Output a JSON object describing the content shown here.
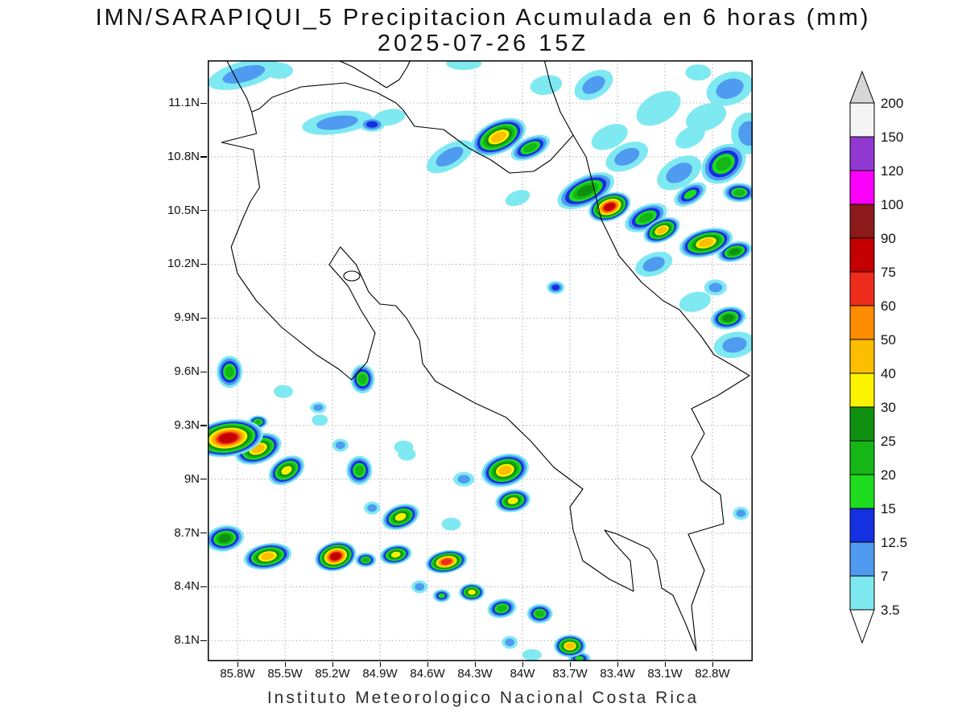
{
  "chart_data": {
    "type": "heatmap",
    "title": "IMN/SARAPIQUI_5 Precipitacion Acumulada en 6 horas (mm)",
    "subtitle": "2025-07-26 15Z",
    "footer": "Instituto Meteorologico Nacional Costa Rica",
    "units": "mm",
    "x_axis": {
      "ticks": [
        "85.8W",
        "85.5W",
        "85.2W",
        "84.9W",
        "84.6W",
        "84.3W",
        "84W",
        "83.7W",
        "83.4W",
        "83.1W",
        "82.8W"
      ]
    },
    "y_axis": {
      "ticks": [
        "11.1N",
        "10.8N",
        "10.5N",
        "10.2N",
        "9.9N",
        "9.6N",
        "9.3N",
        "9N",
        "8.7N",
        "8.4N",
        "8.1N"
      ]
    },
    "grid_color": "#8a8a8a",
    "colorbar": {
      "levels": [
        3.5,
        7,
        12.5,
        15,
        20,
        25,
        30,
        40,
        50,
        60,
        75,
        90,
        100,
        120,
        150,
        200
      ],
      "band_colors": [
        "#7FE9F2",
        "#4E9BEF",
        "#1430E0",
        "#1EDC1E",
        "#16B616",
        "#0F8F0F",
        "#FBF200",
        "#FDBE00",
        "#FB8C00",
        "#EE2C1C",
        "#C40000",
        "#8C1A1A",
        "#FA00FA",
        "#9038D0",
        "#F5F5F5"
      ],
      "above_color": "#D6D6D6",
      "below_color": "#FFFFFF"
    },
    "cells_format": [
      "lon_deg_west",
      "lat_deg_north",
      "rx_px",
      "ry_px",
      "rotation_deg",
      "peak_band_mm"
    ],
    "cells": [
      [
        85.76,
        11.26,
        46,
        16,
        -15,
        7
      ],
      [
        85.54,
        11.28,
        18,
        10,
        0,
        3.5
      ],
      [
        85.17,
        10.99,
        44,
        14,
        -8,
        7
      ],
      [
        84.84,
        11.02,
        20,
        10,
        -10,
        3.5
      ],
      [
        84.95,
        10.98,
        16,
        9,
        0,
        12.5
      ],
      [
        84.46,
        10.8,
        32,
        15,
        -30,
        7
      ],
      [
        84.15,
        10.91,
        36,
        20,
        -25,
        40
      ],
      [
        83.95,
        10.85,
        26,
        13,
        -25,
        20
      ],
      [
        83.85,
        11.2,
        20,
        12,
        -10,
        3.5
      ],
      [
        84.37,
        11.32,
        22,
        8,
        0,
        3.5
      ],
      [
        83.55,
        11.2,
        26,
        16,
        -30,
        7
      ],
      [
        82.69,
        11.18,
        30,
        20,
        -20,
        7
      ],
      [
        82.89,
        11.27,
        16,
        10,
        0,
        3.5
      ],
      [
        82.57,
        10.93,
        22,
        26,
        0,
        7
      ],
      [
        82.73,
        10.76,
        30,
        22,
        -35,
        20
      ],
      [
        82.94,
        10.91,
        20,
        12,
        -30,
        3.5
      ],
      [
        83.6,
        10.61,
        38,
        18,
        -25,
        25
      ],
      [
        83.45,
        10.52,
        27,
        17,
        -20,
        75
      ],
      [
        83.22,
        10.46,
        28,
        15,
        -25,
        20
      ],
      [
        83.12,
        10.39,
        24,
        14,
        -25,
        40
      ],
      [
        82.84,
        10.32,
        34,
        17,
        -15,
        40
      ],
      [
        82.66,
        10.27,
        22,
        12,
        -15,
        25
      ],
      [
        82.94,
        10.59,
        22,
        12,
        -30,
        15
      ],
      [
        82.63,
        10.6,
        20,
        12,
        0,
        20
      ],
      [
        82.78,
        10.07,
        14,
        10,
        0,
        7
      ],
      [
        82.7,
        9.9,
        22,
        14,
        -10,
        25
      ],
      [
        82.66,
        9.75,
        26,
        16,
        -10,
        7
      ],
      [
        83.79,
        10.07,
        11,
        8,
        0,
        12.5
      ],
      [
        84.03,
        10.57,
        16,
        9,
        -20,
        3.5
      ],
      [
        83.14,
        11.07,
        30,
        18,
        -30,
        3.5
      ],
      [
        83.34,
        10.8,
        28,
        16,
        -25,
        7
      ],
      [
        82.84,
        11.02,
        26,
        16,
        -20,
        3.5
      ],
      [
        83.01,
        10.71,
        30,
        18,
        -30,
        7
      ],
      [
        83.17,
        10.2,
        24,
        14,
        -20,
        7
      ],
      [
        82.91,
        9.99,
        20,
        12,
        -15,
        3.5
      ],
      [
        83.45,
        10.91,
        24,
        14,
        -25,
        3.5
      ],
      [
        85.85,
        9.6,
        16,
        20,
        0,
        20
      ],
      [
        85.51,
        9.49,
        12,
        8,
        0,
        3.5
      ],
      [
        85.29,
        9.4,
        10,
        7,
        0,
        7
      ],
      [
        85.01,
        9.56,
        15,
        18,
        0,
        20
      ],
      [
        84.75,
        9.18,
        12,
        8,
        0,
        3.5
      ],
      [
        85.86,
        9.23,
        44,
        23,
        -8,
        75
      ],
      [
        85.67,
        9.17,
        30,
        18,
        -20,
        40
      ],
      [
        85.67,
        9.32,
        12,
        8,
        0,
        20
      ],
      [
        85.49,
        9.05,
        24,
        16,
        -30,
        30
      ],
      [
        85.28,
        9.33,
        10,
        7,
        0,
        3.5
      ],
      [
        85.15,
        9.19,
        10,
        8,
        0,
        7
      ],
      [
        85.03,
        9.05,
        16,
        18,
        0,
        20
      ],
      [
        84.73,
        9.14,
        11,
        8,
        0,
        3.5
      ],
      [
        84.37,
        9.0,
        13,
        9,
        0,
        7
      ],
      [
        84.11,
        9.05,
        30,
        20,
        -15,
        40
      ],
      [
        84.06,
        8.88,
        22,
        14,
        -10,
        30
      ],
      [
        84.95,
        8.84,
        10,
        8,
        0,
        7
      ],
      [
        84.77,
        8.79,
        24,
        15,
        -20,
        30
      ],
      [
        84.45,
        8.75,
        12,
        8,
        0,
        3.5
      ],
      [
        85.88,
        8.67,
        24,
        16,
        -10,
        25
      ],
      [
        85.61,
        8.57,
        30,
        16,
        -10,
        40
      ],
      [
        85.18,
        8.57,
        26,
        18,
        -15,
        75
      ],
      [
        84.99,
        8.55,
        13,
        9,
        0,
        20
      ],
      [
        84.8,
        8.58,
        20,
        12,
        -10,
        30
      ],
      [
        84.48,
        8.54,
        26,
        14,
        -10,
        60
      ],
      [
        84.65,
        8.4,
        10,
        8,
        0,
        7
      ],
      [
        84.51,
        8.35,
        11,
        8,
        0,
        15
      ],
      [
        84.32,
        8.37,
        16,
        11,
        0,
        30
      ],
      [
        84.13,
        8.28,
        18,
        12,
        -10,
        20
      ],
      [
        83.89,
        8.25,
        16,
        12,
        0,
        20
      ],
      [
        83.7,
        8.07,
        20,
        14,
        0,
        40
      ],
      [
        84.08,
        8.09,
        10,
        8,
        0,
        7
      ],
      [
        83.94,
        8.02,
        12,
        7,
        0,
        3.5
      ],
      [
        83.64,
        8.0,
        14,
        8,
        0,
        15
      ],
      [
        82.62,
        8.81,
        10,
        8,
        0,
        7
      ]
    ]
  }
}
